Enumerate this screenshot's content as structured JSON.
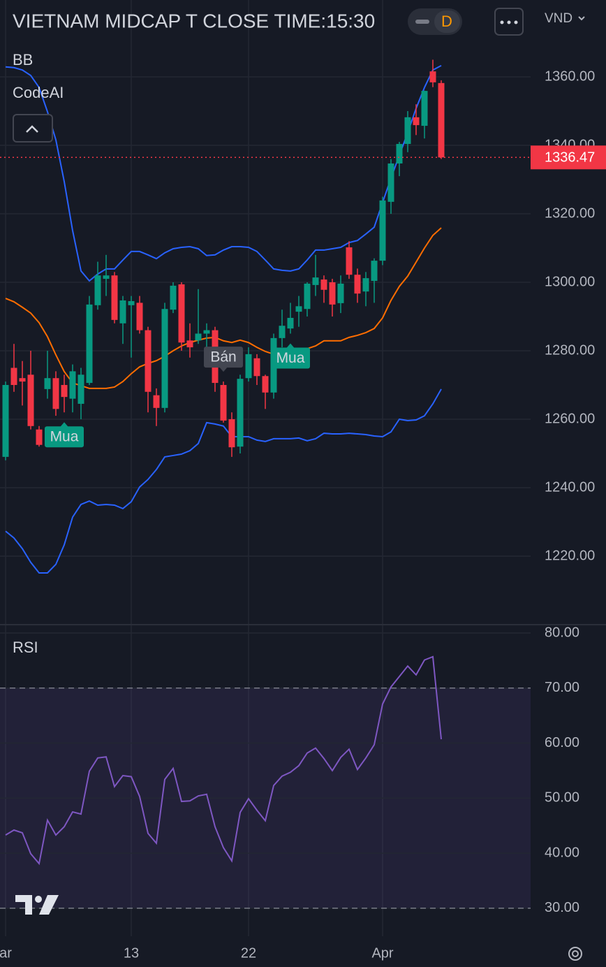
{
  "chart_data": [
    {
      "type": "candlestick",
      "title": "VIETNAM MIDCAP T CLOSE TIME:15:30",
      "interval": "D",
      "currency": "VND",
      "indicators": [
        "BB",
        "CodeAI"
      ],
      "categories": [
        "ar",
        null,
        null,
        null,
        null,
        null,
        null,
        null,
        null,
        null,
        null,
        null,
        null,
        null,
        null,
        "13",
        null,
        null,
        null,
        null,
        null,
        null,
        null,
        null,
        null,
        null,
        null,
        null,
        null,
        "22",
        null,
        null,
        null,
        null,
        null,
        null,
        null,
        null,
        null,
        null,
        null,
        null,
        null,
        null,
        null,
        "Apr",
        null,
        null,
        null,
        null,
        null,
        null,
        null
      ],
      "open": [
        1249,
        1275,
        1272,
        1273,
        1257,
        1268.8,
        1272,
        1270,
        1266,
        1264.5,
        1270.6,
        1293.3,
        1301,
        1302,
        1288,
        1293.3,
        1294,
        1286,
        1267,
        1263.3,
        1292,
        1299.4,
        1283,
        1283,
        1285,
        1286,
        1270,
        1260,
        1252,
        1272,
        1277.8,
        1272.6,
        1267.8,
        1283.7,
        1286.5,
        1291.4,
        1292.2,
        1299.2,
        1300.8,
        1300,
        1293.9,
        1310.2,
        1302.2,
        1297.3,
        1300.4,
        1306.3,
        1323.5,
        1334.7,
        1340.4,
        1348.2,
        1345.7,
        1361.6,
        1358.2
      ],
      "high": [
        1271,
        1282,
        1277,
        1280,
        1258,
        1280,
        1274,
        1273,
        1276,
        1275,
        1296,
        1306,
        1308,
        1303,
        1296,
        1296,
        1296,
        1287,
        1269,
        1294,
        1300,
        1300,
        1288,
        1298,
        1288,
        1287,
        1271,
        1262,
        1273,
        1281,
        1279,
        1273,
        1285,
        1292,
        1294,
        1296,
        1300,
        1308,
        1302,
        1301,
        1302,
        1312,
        1304,
        1303,
        1307,
        1325,
        1336,
        1341,
        1350,
        1352,
        1356,
        1365,
        1359
      ],
      "low": [
        1248,
        1268,
        1264,
        1257,
        1252,
        1266,
        1261,
        1262,
        1262,
        1260,
        1270,
        1292,
        1296,
        1288,
        1282,
        1278,
        1285,
        1262,
        1258,
        1262,
        1291,
        1280,
        1278,
        1282,
        1280,
        1268,
        1259,
        1249,
        1250,
        1271,
        1270,
        1263,
        1266,
        1281,
        1285,
        1287,
        1290,
        1296,
        1294,
        1290,
        1291,
        1301,
        1294,
        1293,
        1294,
        1305,
        1320,
        1331,
        1338,
        1343,
        1342,
        1357,
        1336
      ],
      "close": [
        1270,
        1270,
        1271,
        1258,
        1252.5,
        1272,
        1263,
        1266.5,
        1274,
        1273,
        1293.5,
        1302,
        1302,
        1289,
        1294.7,
        1294.5,
        1286,
        1268,
        1263.3,
        1292.2,
        1299,
        1282.4,
        1281,
        1285,
        1286,
        1270.6,
        1259.6,
        1251.8,
        1271.8,
        1279,
        1272.6,
        1267.8,
        1283.7,
        1287.3,
        1289.6,
        1293,
        1299.6,
        1301.4,
        1297.8,
        1293.5,
        1299.6,
        1302.2,
        1296.7,
        1301.2,
        1306.3,
        1323.9,
        1334.7,
        1340.4,
        1348.2,
        1345.9,
        1355.9,
        1358.4,
        1336.47
      ],
      "up_color": "#089981",
      "down_color": "#f23645",
      "series": [
        {
          "color": "#2962ff",
          "values": [
            1362.9,
            1362.7,
            1362.0,
            1360.4,
            1356.9,
            1349.8,
            1341.6,
            1329.4,
            1315.1,
            1303.3,
            1300.4,
            1302.4,
            1303.9,
            1303.9,
            1306.5,
            1309.0,
            1309.0,
            1308.0,
            1306.9,
            1308.6,
            1309.8,
            1310.2,
            1310.4,
            1309.8,
            1307.8,
            1308.0,
            1309.4,
            1310.4,
            1310.4,
            1310.2,
            1309.0,
            1306.5,
            1303.9,
            1303.5,
            1303.3,
            1303.9,
            1306.5,
            1309.4,
            1309.4,
            1309.8,
            1310.2,
            1311.6,
            1312.2,
            1314.1,
            1316.1,
            1323.3,
            1330.4,
            1337.1,
            1343.7,
            1350.8,
            1356.9,
            1362.0,
            1363.3
          ]
        },
        {
          "color": "#ff6d00",
          "values": [
            1295.3,
            1294.3,
            1292.7,
            1291.0,
            1288.2,
            1284.1,
            1278.8,
            1273.9,
            1270.6,
            1269.8,
            1269.0,
            1269.0,
            1269.0,
            1269.4,
            1271.0,
            1273.3,
            1275.3,
            1276.3,
            1277.1,
            1278.4,
            1280.0,
            1281.4,
            1282.4,
            1283.1,
            1283.7,
            1283.9,
            1282.9,
            1282.4,
            1283.1,
            1282.4,
            1281.0,
            1279.8,
            1279.0,
            1278.8,
            1278.8,
            1279.2,
            1280.6,
            1281.4,
            1282.9,
            1282.9,
            1282.9,
            1283.9,
            1284.5,
            1285.3,
            1286.5,
            1289.6,
            1294.7,
            1298.8,
            1301.8,
            1305.9,
            1310.0,
            1313.7,
            1315.9
          ]
        },
        {
          "color": "#2962ff",
          "values": [
            1227.3,
            1225.3,
            1222.2,
            1218.2,
            1215.1,
            1215.1,
            1217.6,
            1223.3,
            1231.4,
            1235.1,
            1236.1,
            1234.9,
            1235.1,
            1234.9,
            1233.9,
            1235.9,
            1240.2,
            1242.4,
            1245.3,
            1249.0,
            1249.4,
            1249.8,
            1250.8,
            1252.9,
            1259.0,
            1258.6,
            1258.0,
            1254.9,
            1254.9,
            1254.9,
            1253.9,
            1253.5,
            1254.3,
            1254.3,
            1254.3,
            1254.5,
            1253.7,
            1254.3,
            1255.9,
            1255.7,
            1255.7,
            1255.9,
            1255.7,
            1255.5,
            1255.1,
            1254.9,
            1256.3,
            1260.0,
            1259.6,
            1259.8,
            1261.0,
            1264.5,
            1268.8
          ]
        }
      ],
      "signals": [
        {
          "index": 7,
          "label": "Mua",
          "side": "below",
          "color": "#089981"
        },
        {
          "index": 26,
          "label": "Bán",
          "side": "above",
          "color": "#434651"
        },
        {
          "index": 34,
          "label": "Mua",
          "side": "below",
          "color": "#089981"
        }
      ],
      "last_price": 1336.47,
      "ylim": [
        1200.2,
        1382.45
      ],
      "yticks": [
        {
          "value": 1220,
          "label": "1220.00"
        },
        {
          "value": 1240,
          "label": "1240.00"
        },
        {
          "value": 1260,
          "label": "1260.00"
        },
        {
          "value": 1280,
          "label": "1280.00"
        },
        {
          "value": 1300,
          "label": "1300.00"
        },
        {
          "value": 1320,
          "label": "1320.00"
        },
        {
          "value": 1340,
          "label": "1340.00"
        },
        {
          "value": 1360,
          "label": "1360.00"
        }
      ],
      "grid": true
    },
    {
      "type": "line",
      "title": "RSI",
      "color": "#7e57c2",
      "values": [
        43.3,
        44.2,
        43.7,
        39.9,
        38.1,
        46.0,
        43.3,
        44.8,
        47.5,
        47.1,
        54.9,
        57.3,
        57.5,
        52.1,
        54.1,
        53.9,
        50.3,
        43.6,
        41.8,
        53.4,
        55.4,
        49.4,
        49.5,
        50.4,
        50.7,
        44.8,
        41.0,
        38.6,
        47.4,
        49.9,
        47.8,
        45.9,
        52.3,
        54.0,
        54.7,
        55.9,
        58.2,
        59.1,
        57.2,
        55.0,
        57.4,
        58.9,
        55.2,
        57.3,
        59.7,
        67.1,
        70.2,
        72.1,
        74.0,
        72.4,
        75.1,
        75.7,
        60.7
      ],
      "bands": [
        30,
        70
      ],
      "ylim": [
        24.9,
        81.4
      ],
      "yticks": [
        {
          "value": 30,
          "label": "30.00"
        },
        {
          "value": 40,
          "label": "40.00"
        },
        {
          "value": 50,
          "label": "50.00"
        },
        {
          "value": 60,
          "label": "60.00"
        },
        {
          "value": 70,
          "label": "70.00"
        },
        {
          "value": 80,
          "label": "80.00"
        }
      ],
      "grid": true
    }
  ]
}
